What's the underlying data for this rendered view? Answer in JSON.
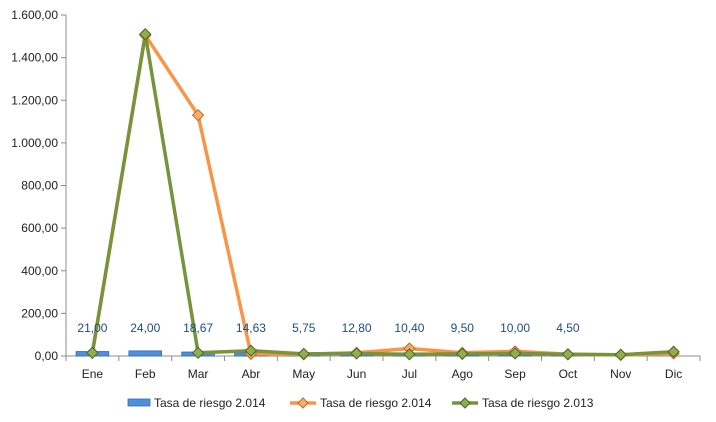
{
  "chart_data": {
    "type": "bar",
    "categories": [
      "Ene",
      "Feb",
      "Mar",
      "Abr",
      "May",
      "Jun",
      "Jul",
      "Ago",
      "Sep",
      "Oct",
      "Nov",
      "Dic"
    ],
    "ylim": [
      0,
      1600
    ],
    "yticks": [
      "0,00",
      "200,00",
      "400,00",
      "600,00",
      "800,00",
      "1.000,00",
      "1.200,00",
      "1.400,00",
      "1.600,00"
    ],
    "bar_labels": [
      "21,00",
      "24,00",
      "18,67",
      "14,63",
      "5,75",
      "12,80",
      "10,40",
      "9,50",
      "10,00",
      "4,50",
      "",
      ""
    ],
    "series": [
      {
        "name": "Tasa de riesgo 2.014",
        "kind": "bar",
        "color": "#4f8fd8",
        "values": [
          21.0,
          24.0,
          18.67,
          14.63,
          5.75,
          12.8,
          10.4,
          9.5,
          10.0,
          4.5,
          0,
          0
        ]
      },
      {
        "name": "Tasa de riesgo 2.014",
        "kind": "line",
        "color": "#f79646",
        "values": [
          15,
          1505,
          1130,
          10,
          8,
          15,
          35,
          15,
          22,
          8,
          5,
          12
        ]
      },
      {
        "name": "Tasa de riesgo 2.013",
        "kind": "line",
        "color": "#77933c",
        "values": [
          15,
          1510,
          15,
          25,
          10,
          12,
          8,
          10,
          12,
          8,
          6,
          20
        ]
      }
    ],
    "grid": false,
    "legend_position": "bottom"
  }
}
